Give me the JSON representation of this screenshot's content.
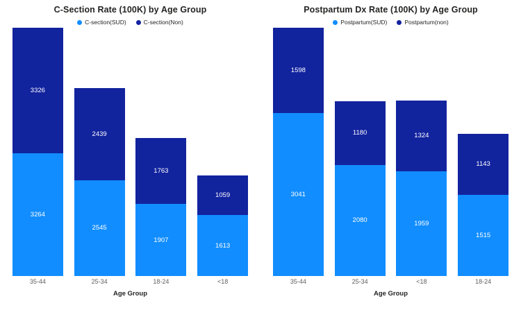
{
  "colors": {
    "sud_blue": "#118DFF",
    "non_blue": "#12239E",
    "title_text": "#252423",
    "axis_text": "#605E5C",
    "data_label_text": "#FFFFFF",
    "background": "#FFFFFF"
  },
  "chart_data": [
    {
      "type": "bar",
      "stacked": true,
      "title": "C-Section Rate (100K) by Age Group",
      "xlabel": "Age Group",
      "ylabel": "",
      "grid": false,
      "legend_position": "top",
      "categories": [
        "35-44",
        "25-34",
        "18-24",
        "<18"
      ],
      "series": [
        {
          "name": "C-section(SUD)",
          "color": "#118DFF",
          "values": [
            3264,
            2545,
            1907,
            1613
          ]
        },
        {
          "name": "C-section(Non)",
          "color": "#12239E",
          "values": [
            3326,
            2439,
            1763,
            1059
          ]
        }
      ],
      "data_label_color": "#FFFFFF"
    },
    {
      "type": "bar",
      "stacked": true,
      "title": "Postpartum Dx Rate (100K) by Age Group",
      "xlabel": "Age Group",
      "ylabel": "",
      "grid": false,
      "legend_position": "top",
      "categories": [
        "35-44",
        "25-34",
        "<18",
        "18-24"
      ],
      "series": [
        {
          "name": "Postpartum(SUD)",
          "color": "#118DFF",
          "values": [
            3041,
            2080,
            1959,
            1515
          ]
        },
        {
          "name": "Postpartum(non)",
          "color": "#12239E",
          "values": [
            1598,
            1180,
            1324,
            1143
          ]
        }
      ],
      "data_label_color": "#FFFFFF"
    }
  ]
}
